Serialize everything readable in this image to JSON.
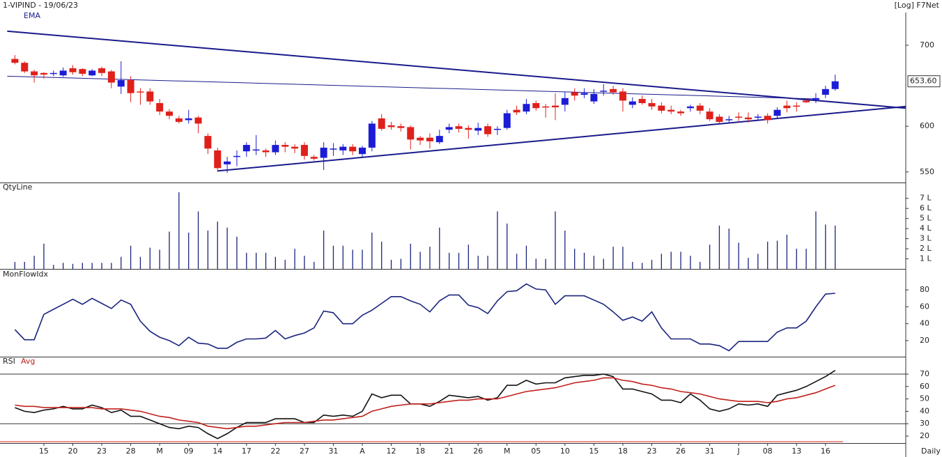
{
  "chart_data": [
    {
      "type": "candlestick",
      "title": "1-VIPIND - 19/06/23",
      "indicator_label": "EMA",
      "scale_label": "[Log] F7Net",
      "log_scale": true,
      "ylim": [
        539,
        745
      ],
      "yticks": [
        550,
        600,
        700
      ],
      "up_color": "#1c1cd6",
      "down_color": "#e0201a",
      "open": [
        682,
        677,
        666,
        664,
        663,
        661,
        670,
        669,
        661,
        670,
        666,
        647,
        655,
        641,
        641,
        627,
        617,
        609,
        607,
        610,
        589,
        573,
        558,
        566,
        572,
        573,
        573,
        571,
        579,
        577,
        579,
        566,
        565,
        574,
        573,
        577,
        569,
        576,
        609,
        601,
        600,
        599,
        587,
        587,
        582,
        596,
        600,
        598,
        595,
        600,
        596,
        598,
        619,
        617,
        627,
        623,
        624,
        625,
        640,
        637,
        629,
        641,
        644,
        641,
        625,
        632,
        627,
        624,
        619,
        617,
        621,
        624,
        617,
        611,
        607,
        611,
        610,
        610,
        612,
        612,
        624,
        624,
        630,
        631,
        637,
        644
      ],
      "high": [
        687,
        679,
        668,
        665,
        667,
        671,
        674,
        670,
        669,
        672,
        668,
        679,
        660,
        645,
        645,
        632,
        620,
        612,
        619,
        612,
        592,
        576,
        566,
        573,
        582,
        590,
        575,
        584,
        582,
        580,
        582,
        568,
        582,
        581,
        580,
        580,
        578,
        606,
        614,
        605,
        603,
        601,
        589,
        592,
        596,
        603,
        603,
        601,
        604,
        603,
        600,
        619,
        624,
        632,
        630,
        626,
        639,
        640,
        645,
        645,
        644,
        650,
        648,
        645,
        634,
        636,
        632,
        628,
        624,
        619,
        625,
        627,
        621,
        614,
        612,
        616,
        616,
        614,
        615,
        622,
        630,
        628,
        632,
        639,
        648,
        662
      ],
      "low": [
        675,
        664,
        652,
        657,
        660,
        659,
        662,
        660,
        660,
        660,
        645,
        638,
        628,
        625,
        625,
        613,
        608,
        603,
        603,
        592,
        569,
        550,
        549,
        556,
        566,
        568,
        566,
        568,
        571,
        570,
        563,
        562,
        552,
        567,
        568,
        568,
        566,
        572,
        595,
        596,
        594,
        574,
        579,
        575,
        580,
        592,
        593,
        586,
        590,
        588,
        590,
        596,
        613,
        614,
        618,
        610,
        607,
        617,
        630,
        633,
        626,
        636,
        637,
        617,
        621,
        625,
        619,
        615,
        614,
        612,
        617,
        614,
        606,
        603,
        603,
        606,
        604,
        606,
        603,
        609,
        616,
        617,
        627,
        627,
        633,
        642
      ],
      "close": [
        677,
        666,
        661,
        662,
        664,
        667,
        665,
        663,
        667,
        664,
        652,
        655,
        639,
        640,
        629,
        617,
        612,
        605,
        609,
        603,
        575,
        554,
        561,
        567,
        579,
        574,
        571,
        579,
        577,
        575,
        567,
        564,
        576,
        575,
        577,
        572,
        576,
        603,
        597,
        599,
        598,
        585,
        584,
        583,
        589,
        599,
        597,
        596,
        598,
        591,
        597,
        615,
        616,
        626,
        621,
        622,
        622,
        633,
        636,
        639,
        638,
        642,
        640,
        630,
        629,
        627,
        623,
        618,
        617,
        615,
        623,
        618,
        608,
        605,
        608,
        610,
        608,
        611,
        607,
        619,
        621,
        623,
        628,
        633,
        644,
        653.6
      ],
      "last_price": {
        "value": 653.6,
        "label": "653.60"
      },
      "trendlines": [
        {
          "x": [
            -0.8,
            92.3
          ],
          "y": [
            719,
            621
          ],
          "color": "#1a1a8c",
          "width": 2
        },
        {
          "x": [
            21,
            92.3
          ],
          "y": [
            551,
            623
          ],
          "color": "#1a1a8c",
          "width": 2
        },
        {
          "x": [
            -0.8,
            83
          ],
          "y": [
            660,
            632
          ],
          "color": "#1a1a8c",
          "width": 1
        }
      ]
    },
    {
      "type": "bar",
      "title": "QtyLine",
      "color": "#1a237e",
      "ylim": [
        0,
        8.5
      ],
      "yticks": [
        {
          "value": 1,
          "label": "1 L"
        },
        {
          "value": 2,
          "label": "2 L"
        },
        {
          "value": 3,
          "label": "3 L"
        },
        {
          "value": 4,
          "label": "4 L"
        },
        {
          "value": 5,
          "label": "5 L"
        },
        {
          "value": 6,
          "label": "6 L"
        },
        {
          "value": 7,
          "label": "7 L"
        }
      ],
      "values": [
        0.7,
        0.7,
        1.3,
        2.5,
        0.4,
        0.6,
        0.5,
        0.6,
        0.6,
        0.6,
        0.6,
        1.2,
        2.3,
        1.2,
        2.1,
        1.9,
        3.7,
        7.6,
        3.6,
        5.7,
        3.8,
        4.7,
        4.1,
        3.2,
        1.6,
        1.6,
        1.6,
        1.2,
        0.9,
        2.0,
        1.3,
        0.7,
        3.8,
        2.3,
        2.3,
        1.9,
        1.9,
        3.6,
        2.7,
        0.9,
        1.0,
        2.5,
        1.7,
        2.2,
        4.1,
        1.6,
        1.6,
        2.4,
        1.3,
        1.3,
        5.7,
        4.5,
        1.5,
        2.3,
        1.0,
        1.0,
        5.7,
        3.8,
        2.0,
        1.6,
        1.3,
        1.0,
        2.2,
        2.2,
        0.7,
        0.6,
        0.9,
        1.5,
        1.7,
        1.7,
        1.3,
        0.7,
        2.4,
        4.3,
        4.0,
        2.6,
        1.1,
        1.5,
        2.7,
        2.8,
        3.4,
        2.0,
        2.0,
        5.7,
        4.4,
        4.3
      ]
    },
    {
      "type": "line",
      "ylim": [
        1,
        104
      ],
      "yticks": [
        20,
        40,
        60,
        80
      ],
      "series": [
        {
          "name": "MonFlowIdx",
          "color": "#1a237e",
          "values": [
            33,
            21,
            21,
            51,
            57,
            63,
            69,
            63,
            70,
            64,
            58,
            68,
            63,
            43,
            31,
            24,
            20,
            14,
            24,
            17,
            16,
            11,
            11,
            18,
            22,
            22,
            23,
            32,
            22,
            26,
            29,
            35,
            55,
            53,
            40,
            40,
            50,
            56,
            64,
            72,
            72,
            67,
            63,
            54,
            67,
            74,
            74,
            62,
            59,
            52,
            67,
            78,
            79,
            87,
            81,
            80,
            63,
            73,
            73,
            73,
            68,
            63,
            54,
            44,
            48,
            43,
            54,
            35,
            22,
            22,
            22,
            16,
            16,
            14,
            8,
            19,
            19,
            19,
            19,
            30,
            35,
            35,
            43,
            60,
            75,
            76
          ]
        }
      ]
    },
    {
      "type": "line",
      "ylim": [
        14.4,
        83.5
      ],
      "yticks": [
        20,
        30,
        40,
        50,
        60,
        70
      ],
      "levels": [
        70,
        30
      ],
      "x_label": "Daily",
      "categories": [
        null,
        null,
        null,
        "15",
        null,
        null,
        "20",
        null,
        null,
        "23",
        null,
        null,
        "28",
        null,
        null,
        "M",
        null,
        null,
        "09",
        null,
        null,
        "14",
        null,
        null,
        "17",
        null,
        null,
        "22",
        null,
        null,
        "27",
        null,
        null,
        "31",
        null,
        null,
        "A",
        null,
        null,
        "12",
        null,
        null,
        "18",
        null,
        null,
        "21",
        null,
        null,
        "26",
        null,
        null,
        "M",
        null,
        null,
        "05",
        null,
        null,
        "10",
        null,
        null,
        "15",
        null,
        null,
        "18",
        null,
        null,
        "23",
        null,
        null,
        "26",
        null,
        null,
        "31",
        null,
        null,
        "J",
        null,
        null,
        "08",
        null,
        null,
        "13",
        null,
        null,
        "16",
        null
      ],
      "series": [
        {
          "name": "RSI",
          "color": "#111111",
          "values": [
            43,
            40,
            39,
            41,
            42,
            44,
            42,
            42,
            45,
            43,
            39,
            41,
            36,
            36,
            33,
            30,
            27,
            26,
            28,
            27,
            22,
            18,
            22,
            27,
            31,
            31,
            31,
            34,
            34,
            34,
            31,
            31,
            37,
            36,
            37,
            36,
            40,
            54,
            51,
            53,
            53,
            46,
            46,
            44,
            48,
            53,
            52,
            51,
            52,
            49,
            51,
            61,
            61,
            65,
            62,
            63,
            63,
            67,
            68,
            69,
            69,
            70,
            68,
            58,
            58,
            56,
            54,
            49,
            49,
            47,
            54,
            49,
            42,
            40,
            42,
            46,
            45,
            46,
            44,
            53,
            55,
            57,
            60,
            64,
            68,
            73
          ]
        },
        {
          "name": "Avg",
          "color": "#c0201a",
          "values": [
            45,
            44,
            44,
            43,
            43,
            43,
            43,
            43,
            43,
            42,
            42,
            42,
            41,
            40,
            38,
            36,
            35,
            33,
            32,
            31,
            28,
            27,
            26,
            27,
            28,
            28,
            29,
            30,
            31,
            31,
            31,
            32,
            33,
            33,
            34,
            35,
            36,
            40,
            42,
            44,
            45,
            46,
            46,
            46,
            47,
            48,
            49,
            49,
            50,
            50,
            50,
            52,
            54,
            56,
            57,
            58,
            59,
            61,
            63,
            64,
            65,
            67,
            67,
            65,
            64,
            62,
            61,
            59,
            58,
            56,
            55,
            54,
            52,
            50,
            49,
            48,
            48,
            48,
            47,
            48,
            50,
            51,
            53,
            55,
            58,
            61
          ]
        }
      ]
    }
  ]
}
